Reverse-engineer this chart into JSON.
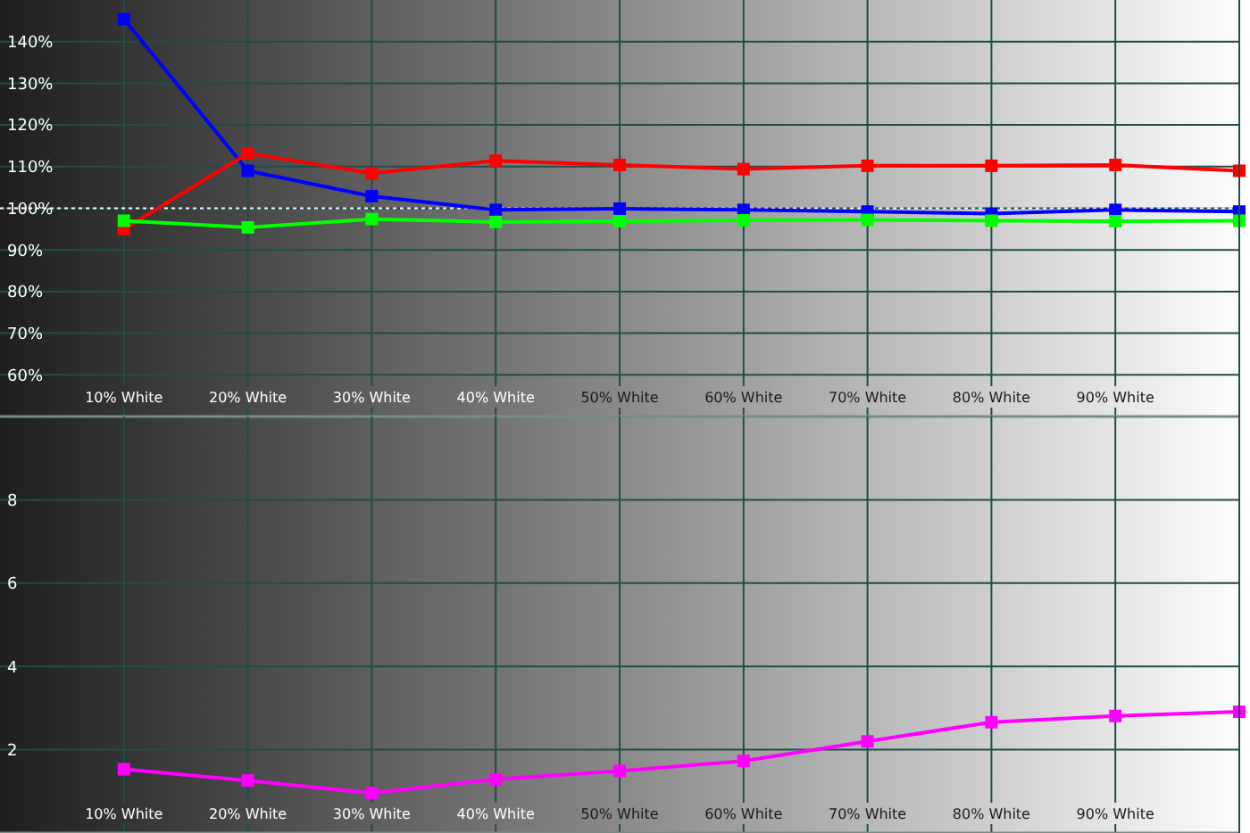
{
  "chart_data": [
    {
      "type": "line",
      "x": [
        10,
        20,
        30,
        40,
        50,
        60,
        70,
        80,
        90,
        100
      ],
      "xlim": [
        0,
        100
      ],
      "xticks": [
        {
          "value": 10,
          "label": "10% White"
        },
        {
          "value": 20,
          "label": "20% White"
        },
        {
          "value": 30,
          "label": "30% White"
        },
        {
          "value": 40,
          "label": "40% White"
        },
        {
          "value": 50,
          "label": "50% White"
        },
        {
          "value": 60,
          "label": "60% White"
        },
        {
          "value": 70,
          "label": "70% White"
        },
        {
          "value": 80,
          "label": "80% White"
        },
        {
          "value": 90,
          "label": "90% White"
        }
      ],
      "ylim": [
        50,
        150
      ],
      "yticks": [
        {
          "value": 60,
          "label": "60%"
        },
        {
          "value": 70,
          "label": "70%"
        },
        {
          "value": 80,
          "label": "80%"
        },
        {
          "value": 90,
          "label": "90%"
        },
        {
          "value": 100,
          "label": "100%"
        },
        {
          "value": 110,
          "label": "110%"
        },
        {
          "value": 120,
          "label": "120%"
        },
        {
          "value": 130,
          "label": "130%"
        },
        {
          "value": 140,
          "label": "140%"
        }
      ],
      "series": [
        {
          "color": "#00ff00",
          "values": [
            97.0,
            95.4,
            97.4,
            96.7,
            96.9,
            97.1,
            97.2,
            97.0,
            96.9,
            97.0
          ]
        },
        {
          "color": "#ff0000",
          "values": [
            95.0,
            113.2,
            108.4,
            111.4,
            110.4,
            109.4,
            110.2,
            110.2,
            110.4,
            109.0
          ]
        },
        {
          "color": "#0000ff",
          "values": [
            145.4,
            109.0,
            102.9,
            99.6,
            99.9,
            99.6,
            99.2,
            98.7,
            99.6,
            99.2
          ]
        }
      ],
      "ref_lines": [
        {
          "axis": "y",
          "value": 100,
          "color": "#ffffff",
          "line_style": "dotted"
        }
      ],
      "grid": true,
      "marker": "square"
    },
    {
      "type": "line",
      "x": [
        10,
        20,
        30,
        40,
        50,
        60,
        70,
        80,
        90,
        100
      ],
      "xlim": [
        0,
        100
      ],
      "xticks": [
        {
          "value": 10,
          "label": "10% White"
        },
        {
          "value": 20,
          "label": "20% White"
        },
        {
          "value": 30,
          "label": "30% White"
        },
        {
          "value": 40,
          "label": "40% White"
        },
        {
          "value": 50,
          "label": "50% White"
        },
        {
          "value": 60,
          "label": "60% White"
        },
        {
          "value": 70,
          "label": "70% White"
        },
        {
          "value": 80,
          "label": "80% White"
        },
        {
          "value": 90,
          "label": "90% White"
        }
      ],
      "ylim": [
        0,
        10
      ],
      "yticks": [
        2,
        4,
        6,
        8
      ],
      "series": [
        {
          "color": "#ff00ff",
          "values": [
            1.53,
            1.26,
            0.96,
            1.29,
            1.49,
            1.73,
            2.2,
            2.66,
            2.81,
            2.91
          ]
        }
      ],
      "grid": true,
      "marker": "square"
    }
  ]
}
